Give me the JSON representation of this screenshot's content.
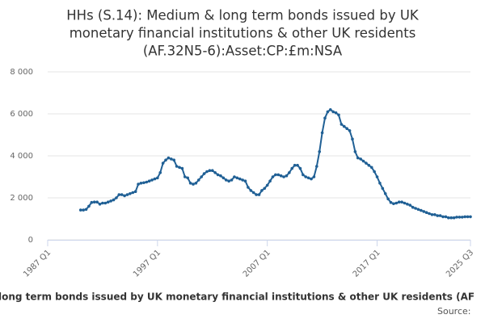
{
  "chart_data": {
    "type": "line",
    "title": [
      "HHs (S.14): Medium & long term bonds issued by UK",
      "monetary financial institutions & other UK residents",
      "(AF.32N5-6):Asset:CP:£m:NSA"
    ],
    "legend_text": "long term bonds issued by UK monetary financial institutions & other UK residents (AF",
    "source": "Source:",
    "categories": [
      "1987 Q1",
      null,
      null,
      null,
      null,
      null,
      null,
      null,
      null,
      null,
      null,
      null,
      null,
      null,
      null,
      null,
      null,
      null,
      null,
      null,
      null,
      null,
      null,
      null,
      null,
      null,
      null,
      null,
      null,
      null,
      null,
      null,
      null,
      null,
      null,
      null,
      null,
      null,
      null,
      null,
      "1997 Q1",
      null,
      null,
      null,
      null,
      null,
      null,
      null,
      null,
      null,
      null,
      null,
      null,
      null,
      null,
      null,
      null,
      null,
      null,
      null,
      null,
      null,
      null,
      null,
      null,
      null,
      null,
      null,
      null,
      null,
      null,
      null,
      null,
      null,
      null,
      null,
      null,
      null,
      null,
      null,
      "2007 Q1",
      null,
      null,
      null,
      null,
      null,
      null,
      null,
      null,
      null,
      null,
      null,
      null,
      null,
      null,
      null,
      null,
      null,
      null,
      null,
      null,
      null,
      null,
      null,
      null,
      null,
      null,
      null,
      null,
      null,
      null,
      null,
      null,
      null,
      null,
      null,
      null,
      null,
      null,
      null,
      "2017 Q1",
      null,
      null,
      null,
      null,
      null,
      null,
      null,
      null,
      null,
      null,
      null,
      null,
      null,
      null,
      null,
      null,
      null,
      null,
      null,
      null,
      null,
      null,
      null,
      null,
      null,
      null,
      null,
      null,
      null,
      null,
      null,
      null,
      null,
      "2025 Q3"
    ],
    "series": [
      {
        "name": "long term bonds issued by UK monetary financial institutions & other UK residents (AF",
        "color": "#206095",
        "values": [
          null,
          null,
          null,
          null,
          null,
          null,
          null,
          null,
          null,
          null,
          null,
          null,
          1420,
          1420,
          1450,
          1600,
          1780,
          1800,
          1800,
          1700,
          1750,
          1750,
          1800,
          1850,
          1900,
          2000,
          2150,
          2150,
          2100,
          2150,
          2200,
          2250,
          2300,
          2650,
          2700,
          2720,
          2750,
          2800,
          2850,
          2900,
          2950,
          3200,
          3650,
          3800,
          3900,
          3850,
          3800,
          3500,
          3450,
          3400,
          3000,
          2950,
          2700,
          2650,
          2700,
          2850,
          3000,
          3150,
          3250,
          3300,
          3300,
          3200,
          3100,
          3050,
          2950,
          2850,
          2800,
          2850,
          3000,
          2950,
          2900,
          2850,
          2800,
          2500,
          2350,
          2250,
          2150,
          2150,
          2350,
          2450,
          2600,
          2800,
          3000,
          3100,
          3100,
          3050,
          3000,
          3050,
          3200,
          3400,
          3550,
          3550,
          3400,
          3100,
          3000,
          2950,
          2900,
          3000,
          3500,
          4200,
          5100,
          5800,
          6100,
          6200,
          6100,
          6050,
          5950,
          5500,
          5400,
          5300,
          5200,
          4800,
          4200,
          3900,
          3850,
          3750,
          3650,
          3550,
          3450,
          3250,
          3000,
          2700,
          2450,
          2200,
          1950,
          1780,
          1720,
          1750,
          1800,
          1800,
          1750,
          1700,
          1650,
          1550,
          1500,
          1450,
          1400,
          1350,
          1300,
          1250,
          1200,
          1200,
          1150,
          1150,
          1100,
          1100,
          1050,
          1050,
          1050,
          1080,
          1080,
          1080,
          1100,
          1100,
          1100
        ]
      }
    ],
    "ylim": [
      0,
      8000
    ],
    "yticks": [
      0,
      {
        "value": 2000,
        "label": "2 000"
      },
      {
        "value": 4000,
        "label": "4 000"
      },
      {
        "value": 6000,
        "label": "6 000"
      },
      {
        "value": 8000,
        "label": "8 000"
      }
    ],
    "grid": true
  }
}
